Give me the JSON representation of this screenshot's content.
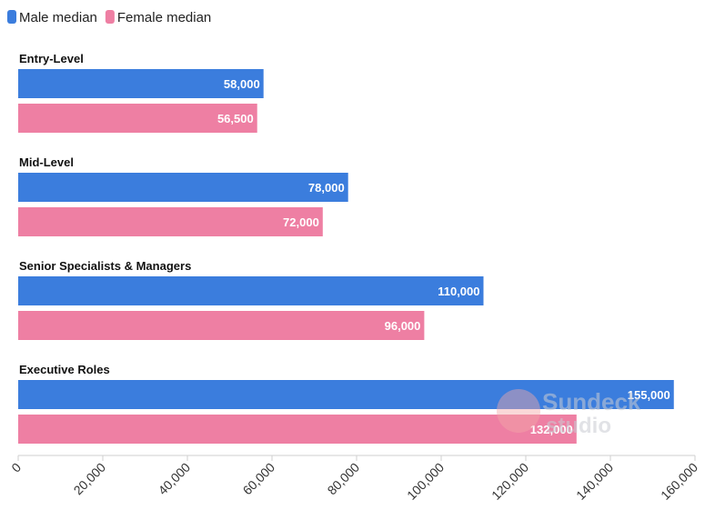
{
  "chart_data": {
    "type": "bar",
    "orientation": "horizontal",
    "categories": [
      "Entry-Level",
      "Mid-Level",
      "Senior Specialists & Managers",
      "Executive Roles"
    ],
    "series": [
      {
        "name": "Male median",
        "color": "#3b7ddd",
        "values": [
          58000,
          78000,
          110000,
          155000
        ]
      },
      {
        "name": "Female median",
        "color": "#ee7fa3",
        "values": [
          56500,
          72000,
          96000,
          132000
        ]
      }
    ],
    "title": "",
    "xlabel": "",
    "ylabel": "",
    "xlim": [
      0,
      160000
    ],
    "x_ticks": [
      0,
      20000,
      40000,
      60000,
      80000,
      100000,
      120000,
      140000,
      160000
    ],
    "grid": false,
    "legend": "top-left",
    "watermark": {
      "icon": "sundeck-logo-icon",
      "line1": "Sundeck",
      "line2": "studio"
    }
  }
}
